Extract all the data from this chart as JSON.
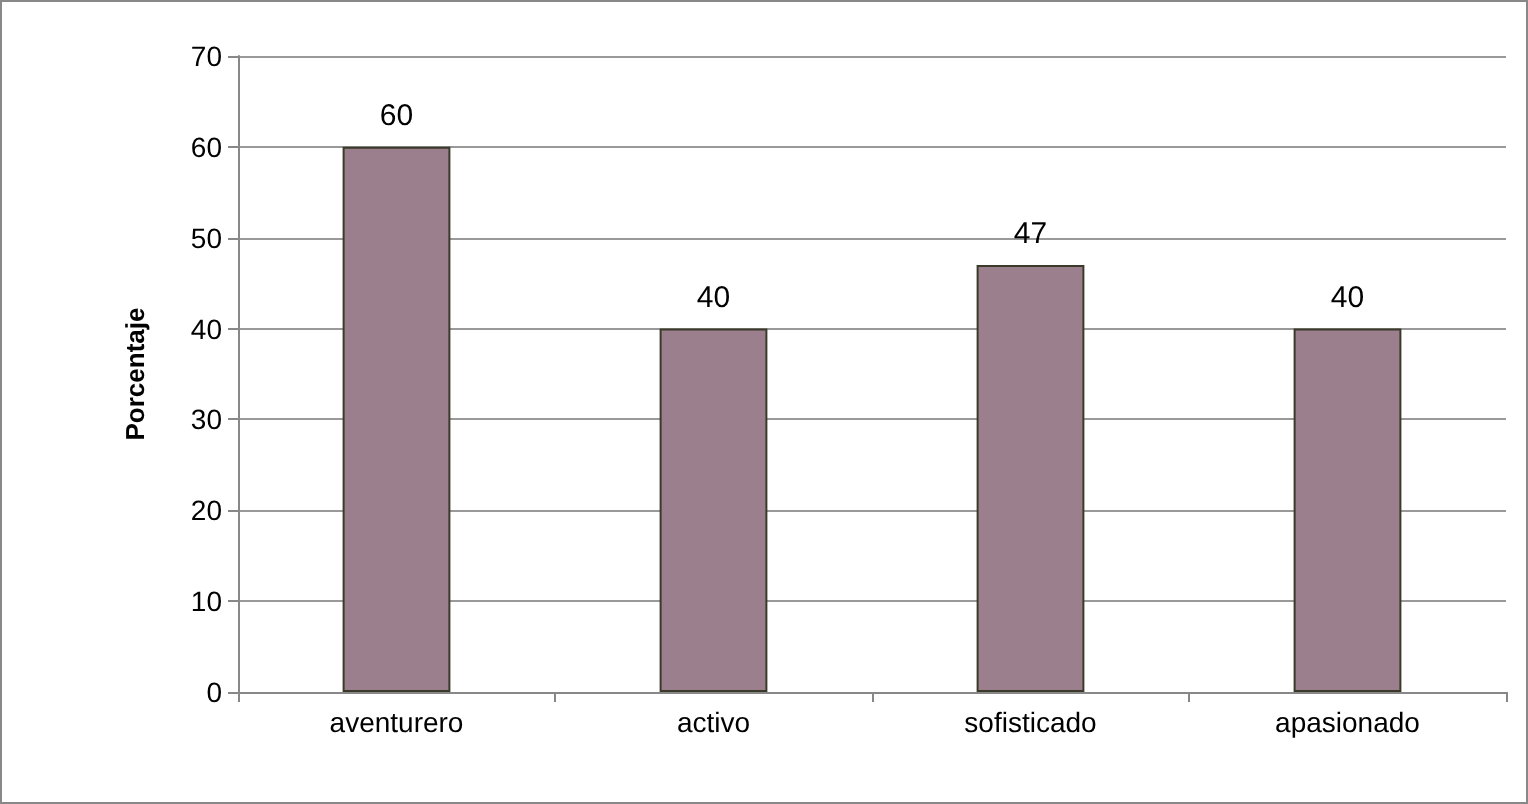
{
  "chart_data": {
    "type": "bar",
    "ylabel": "Porcentaje",
    "categories": [
      "aventurero",
      "activo",
      "sofisticado",
      "apasionado"
    ],
    "values": [
      60,
      40,
      47,
      40
    ],
    "color": "#9c7f8c",
    "ylim": [
      0,
      70
    ],
    "yticks": [
      0,
      10,
      20,
      30,
      40,
      50,
      60,
      70
    ],
    "grid": "y",
    "data_labels": true
  }
}
